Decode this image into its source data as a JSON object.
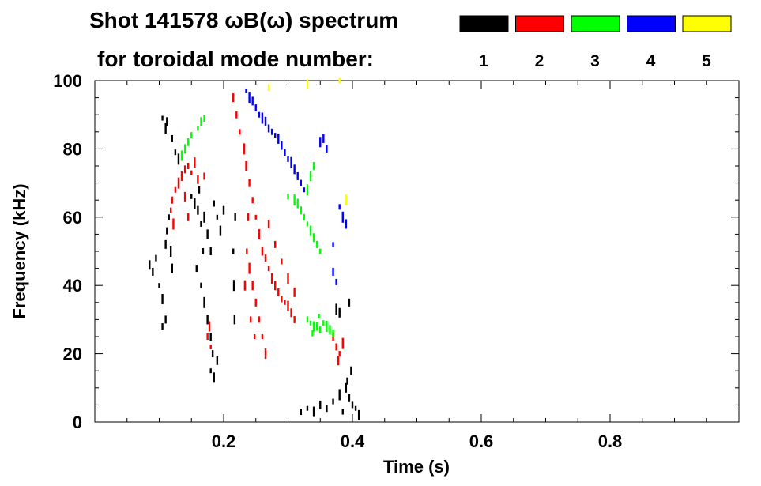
{
  "chart_data": {
    "type": "scatter",
    "title_line1": "Shot 141578 ωB(ω) spectrum",
    "title_line2": "for toroidal mode number:",
    "xlabel": "Time (s)",
    "ylabel": "Frequency (kHz)",
    "xlim": [
      0.0,
      1.0
    ],
    "ylim": [
      0,
      100
    ],
    "x_ticks": [
      0.2,
      0.4,
      0.6,
      0.8
    ],
    "x_tick_labels": [
      "0.2",
      "0.4",
      "0.6",
      "0.8"
    ],
    "y_ticks": [
      0,
      20,
      40,
      60,
      80,
      100
    ],
    "y_tick_labels": [
      "0",
      "20",
      "40",
      "60",
      "80",
      "100"
    ],
    "legend": [
      {
        "label": "1",
        "color": "#000000"
      },
      {
        "label": "2",
        "color": "#ff0000"
      },
      {
        "label": "3",
        "color": "#00ff00"
      },
      {
        "label": "4",
        "color": "#0000ff"
      },
      {
        "label": "5",
        "color": "#ffff00"
      }
    ],
    "series": [
      {
        "name": "n=1",
        "color": "#000000",
        "points": [
          [
            0.105,
            89
          ],
          [
            0.11,
            86
          ],
          [
            0.112,
            88
          ],
          [
            0.12,
            83
          ],
          [
            0.125,
            79
          ],
          [
            0.13,
            77
          ],
          [
            0.085,
            46
          ],
          [
            0.09,
            44
          ],
          [
            0.095,
            48
          ],
          [
            0.1,
            40
          ],
          [
            0.105,
            36
          ],
          [
            0.11,
            52
          ],
          [
            0.112,
            56
          ],
          [
            0.115,
            60
          ],
          [
            0.118,
            50
          ],
          [
            0.12,
            45
          ],
          [
            0.11,
            30
          ],
          [
            0.105,
            28
          ],
          [
            0.15,
            66
          ],
          [
            0.155,
            64
          ],
          [
            0.16,
            62
          ],
          [
            0.162,
            68
          ],
          [
            0.165,
            58
          ],
          [
            0.17,
            60
          ],
          [
            0.175,
            55
          ],
          [
            0.18,
            50
          ],
          [
            0.185,
            64
          ],
          [
            0.19,
            60
          ],
          [
            0.195,
            56
          ],
          [
            0.2,
            62
          ],
          [
            0.158,
            45
          ],
          [
            0.165,
            40
          ],
          [
            0.17,
            35
          ],
          [
            0.175,
            30
          ],
          [
            0.18,
            25
          ],
          [
            0.168,
            50
          ],
          [
            0.18,
            15
          ],
          [
            0.185,
            13
          ],
          [
            0.19,
            18
          ],
          [
            0.183,
            20
          ],
          [
            0.215,
            50
          ],
          [
            0.216,
            40
          ],
          [
            0.217,
            30
          ],
          [
            0.218,
            60
          ],
          [
            0.32,
            3
          ],
          [
            0.33,
            4
          ],
          [
            0.34,
            3
          ],
          [
            0.35,
            5
          ],
          [
            0.36,
            4
          ],
          [
            0.37,
            6
          ],
          [
            0.38,
            8
          ],
          [
            0.39,
            10
          ],
          [
            0.395,
            7
          ],
          [
            0.4,
            5
          ],
          [
            0.405,
            4
          ],
          [
            0.41,
            2
          ],
          [
            0.398,
            15
          ],
          [
            0.392,
            12
          ],
          [
            0.385,
            3
          ],
          [
            0.375,
            33
          ],
          [
            0.38,
            32
          ],
          [
            0.395,
            35
          ]
        ]
      },
      {
        "name": "n=2",
        "color": "#ff0000",
        "points": [
          [
            0.12,
            65
          ],
          [
            0.125,
            68
          ],
          [
            0.13,
            70
          ],
          [
            0.135,
            72
          ],
          [
            0.14,
            74
          ],
          [
            0.145,
            75
          ],
          [
            0.15,
            73
          ],
          [
            0.155,
            76
          ],
          [
            0.16,
            71
          ],
          [
            0.17,
            72
          ],
          [
            0.118,
            62
          ],
          [
            0.122,
            58
          ],
          [
            0.14,
            66
          ],
          [
            0.145,
            60
          ],
          [
            0.175,
            25
          ],
          [
            0.18,
            22
          ],
          [
            0.178,
            28
          ],
          [
            0.215,
            95
          ],
          [
            0.22,
            90
          ],
          [
            0.225,
            85
          ],
          [
            0.232,
            80
          ],
          [
            0.235,
            75
          ],
          [
            0.24,
            70
          ],
          [
            0.245,
            65
          ],
          [
            0.25,
            60
          ],
          [
            0.255,
            55
          ],
          [
            0.26,
            50
          ],
          [
            0.265,
            48
          ],
          [
            0.27,
            45
          ],
          [
            0.275,
            42
          ],
          [
            0.28,
            40
          ],
          [
            0.285,
            38
          ],
          [
            0.29,
            36
          ],
          [
            0.295,
            35
          ],
          [
            0.3,
            34
          ],
          [
            0.305,
            32
          ],
          [
            0.31,
            30
          ],
          [
            0.236,
            50
          ],
          [
            0.24,
            45
          ],
          [
            0.245,
            40
          ],
          [
            0.25,
            35
          ],
          [
            0.255,
            30
          ],
          [
            0.26,
            25
          ],
          [
            0.265,
            20
          ],
          [
            0.27,
            58
          ],
          [
            0.28,
            52
          ],
          [
            0.29,
            47
          ],
          [
            0.3,
            42
          ],
          [
            0.31,
            38
          ],
          [
            0.238,
            60
          ],
          [
            0.242,
            30
          ],
          [
            0.248,
            25
          ],
          [
            0.233,
            40
          ],
          [
            0.37,
            25
          ],
          [
            0.375,
            22
          ],
          [
            0.38,
            20
          ],
          [
            0.385,
            23
          ],
          [
            0.378,
            18
          ]
        ]
      },
      {
        "name": "n=3",
        "color": "#00ff00",
        "points": [
          [
            0.14,
            80
          ],
          [
            0.145,
            82
          ],
          [
            0.15,
            84
          ],
          [
            0.16,
            86
          ],
          [
            0.135,
            78
          ],
          [
            0.165,
            88
          ],
          [
            0.17,
            89
          ],
          [
            0.3,
            66
          ],
          [
            0.31,
            65
          ],
          [
            0.315,
            64
          ],
          [
            0.32,
            62
          ],
          [
            0.325,
            60
          ],
          [
            0.33,
            58
          ],
          [
            0.335,
            56
          ],
          [
            0.34,
            54
          ],
          [
            0.345,
            52
          ],
          [
            0.35,
            50
          ],
          [
            0.33,
            68
          ],
          [
            0.335,
            72
          ],
          [
            0.34,
            75
          ],
          [
            0.33,
            30
          ],
          [
            0.335,
            29
          ],
          [
            0.34,
            28
          ],
          [
            0.345,
            28
          ],
          [
            0.35,
            27
          ],
          [
            0.355,
            29
          ],
          [
            0.36,
            28
          ],
          [
            0.365,
            27
          ],
          [
            0.37,
            26
          ],
          [
            0.338,
            26
          ],
          [
            0.348,
            31
          ]
        ]
      },
      {
        "name": "n=4",
        "color": "#0000ff",
        "points": [
          [
            0.235,
            97
          ],
          [
            0.24,
            95
          ],
          [
            0.245,
            94
          ],
          [
            0.25,
            92
          ],
          [
            0.255,
            90
          ],
          [
            0.26,
            89
          ],
          [
            0.265,
            88
          ],
          [
            0.27,
            86
          ],
          [
            0.275,
            85
          ],
          [
            0.28,
            84
          ],
          [
            0.285,
            83
          ],
          [
            0.29,
            81
          ],
          [
            0.295,
            79
          ],
          [
            0.3,
            77
          ],
          [
            0.305,
            76
          ],
          [
            0.31,
            74
          ],
          [
            0.315,
            72
          ],
          [
            0.32,
            70
          ],
          [
            0.325,
            68
          ],
          [
            0.35,
            82
          ],
          [
            0.355,
            83
          ],
          [
            0.36,
            80
          ],
          [
            0.38,
            63
          ],
          [
            0.385,
            60
          ],
          [
            0.39,
            58
          ],
          [
            0.37,
            44
          ],
          [
            0.375,
            41
          ],
          [
            0.37,
            52
          ]
        ]
      },
      {
        "name": "n=5",
        "color": "#ffff00",
        "points": [
          [
            0.27,
            98
          ],
          [
            0.38,
            100
          ],
          [
            0.39,
            65
          ],
          [
            0.33,
            99
          ]
        ]
      }
    ]
  }
}
